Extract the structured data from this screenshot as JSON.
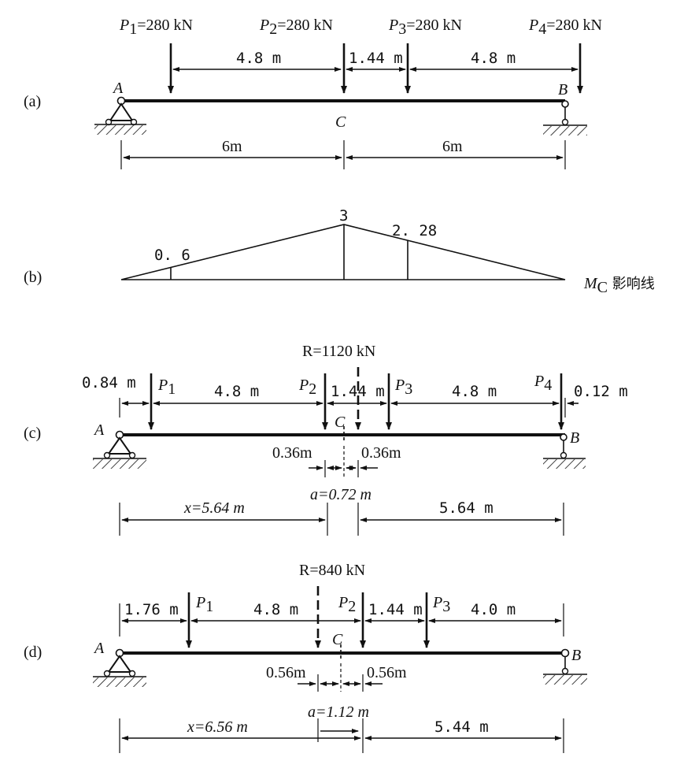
{
  "panels": {
    "a": {
      "label": "(a)",
      "loads": [
        {
          "name": "P",
          "sub": "1",
          "value": "=280 kN"
        },
        {
          "name": "P",
          "sub": "2",
          "value": "=280 kN"
        },
        {
          "name": "P",
          "sub": "3",
          "value": "=280 kN"
        },
        {
          "name": "P",
          "sub": "4",
          "value": "=280 kN"
        }
      ],
      "spacings": [
        "4.8 m",
        "1.44 m",
        "4.8 m"
      ],
      "support_a": "A",
      "support_b": "B",
      "point_c": "C",
      "spans": [
        "6m",
        "6m"
      ]
    },
    "b": {
      "label": "(b)",
      "peak_value": "3",
      "ord_left": "0. 6",
      "ord_right": "2. 28",
      "influence_symbol": "M",
      "influence_sub": "C",
      "influence_caption": " 影响线"
    },
    "c": {
      "label": "(c)",
      "resultant": "R=1120 kN",
      "left_gap": "0.84 m",
      "spacing_1": "4.8 m",
      "spacing_2": "1.44 m",
      "spacing_3": "4.8 m",
      "right_gap": "0.12 m",
      "loads": [
        {
          "name": "P",
          "sub": "1"
        },
        {
          "name": "P",
          "sub": "2"
        },
        {
          "name": "P",
          "sub": "3"
        },
        {
          "name": "P",
          "sub": "4"
        }
      ],
      "support_a": "A",
      "support_b": "B",
      "point_c": "C",
      "half_offset_left": "0.36m",
      "half_offset_right": "0.36m",
      "a_value": "a=0.72 m",
      "x_value": "x=5.64 m",
      "right_span": "5.64 m"
    },
    "d": {
      "label": "(d)",
      "resultant": "R=840 kN",
      "left_gap": "1.76 m",
      "spacing_1": "4.8 m",
      "spacing_2": "1.44 m",
      "spacing_3": "4.0 m",
      "loads": [
        {
          "name": "P",
          "sub": "1"
        },
        {
          "name": "P",
          "sub": "2"
        },
        {
          "name": "P",
          "sub": "3"
        }
      ],
      "support_a": "A",
      "support_b": "B",
      "point_c": "C",
      "half_offset_left": "0.56m",
      "half_offset_right": "0.56m",
      "a_value": "a=1.12 m",
      "x_value": "x=6.56 m",
      "right_span": "5.44 m"
    }
  }
}
